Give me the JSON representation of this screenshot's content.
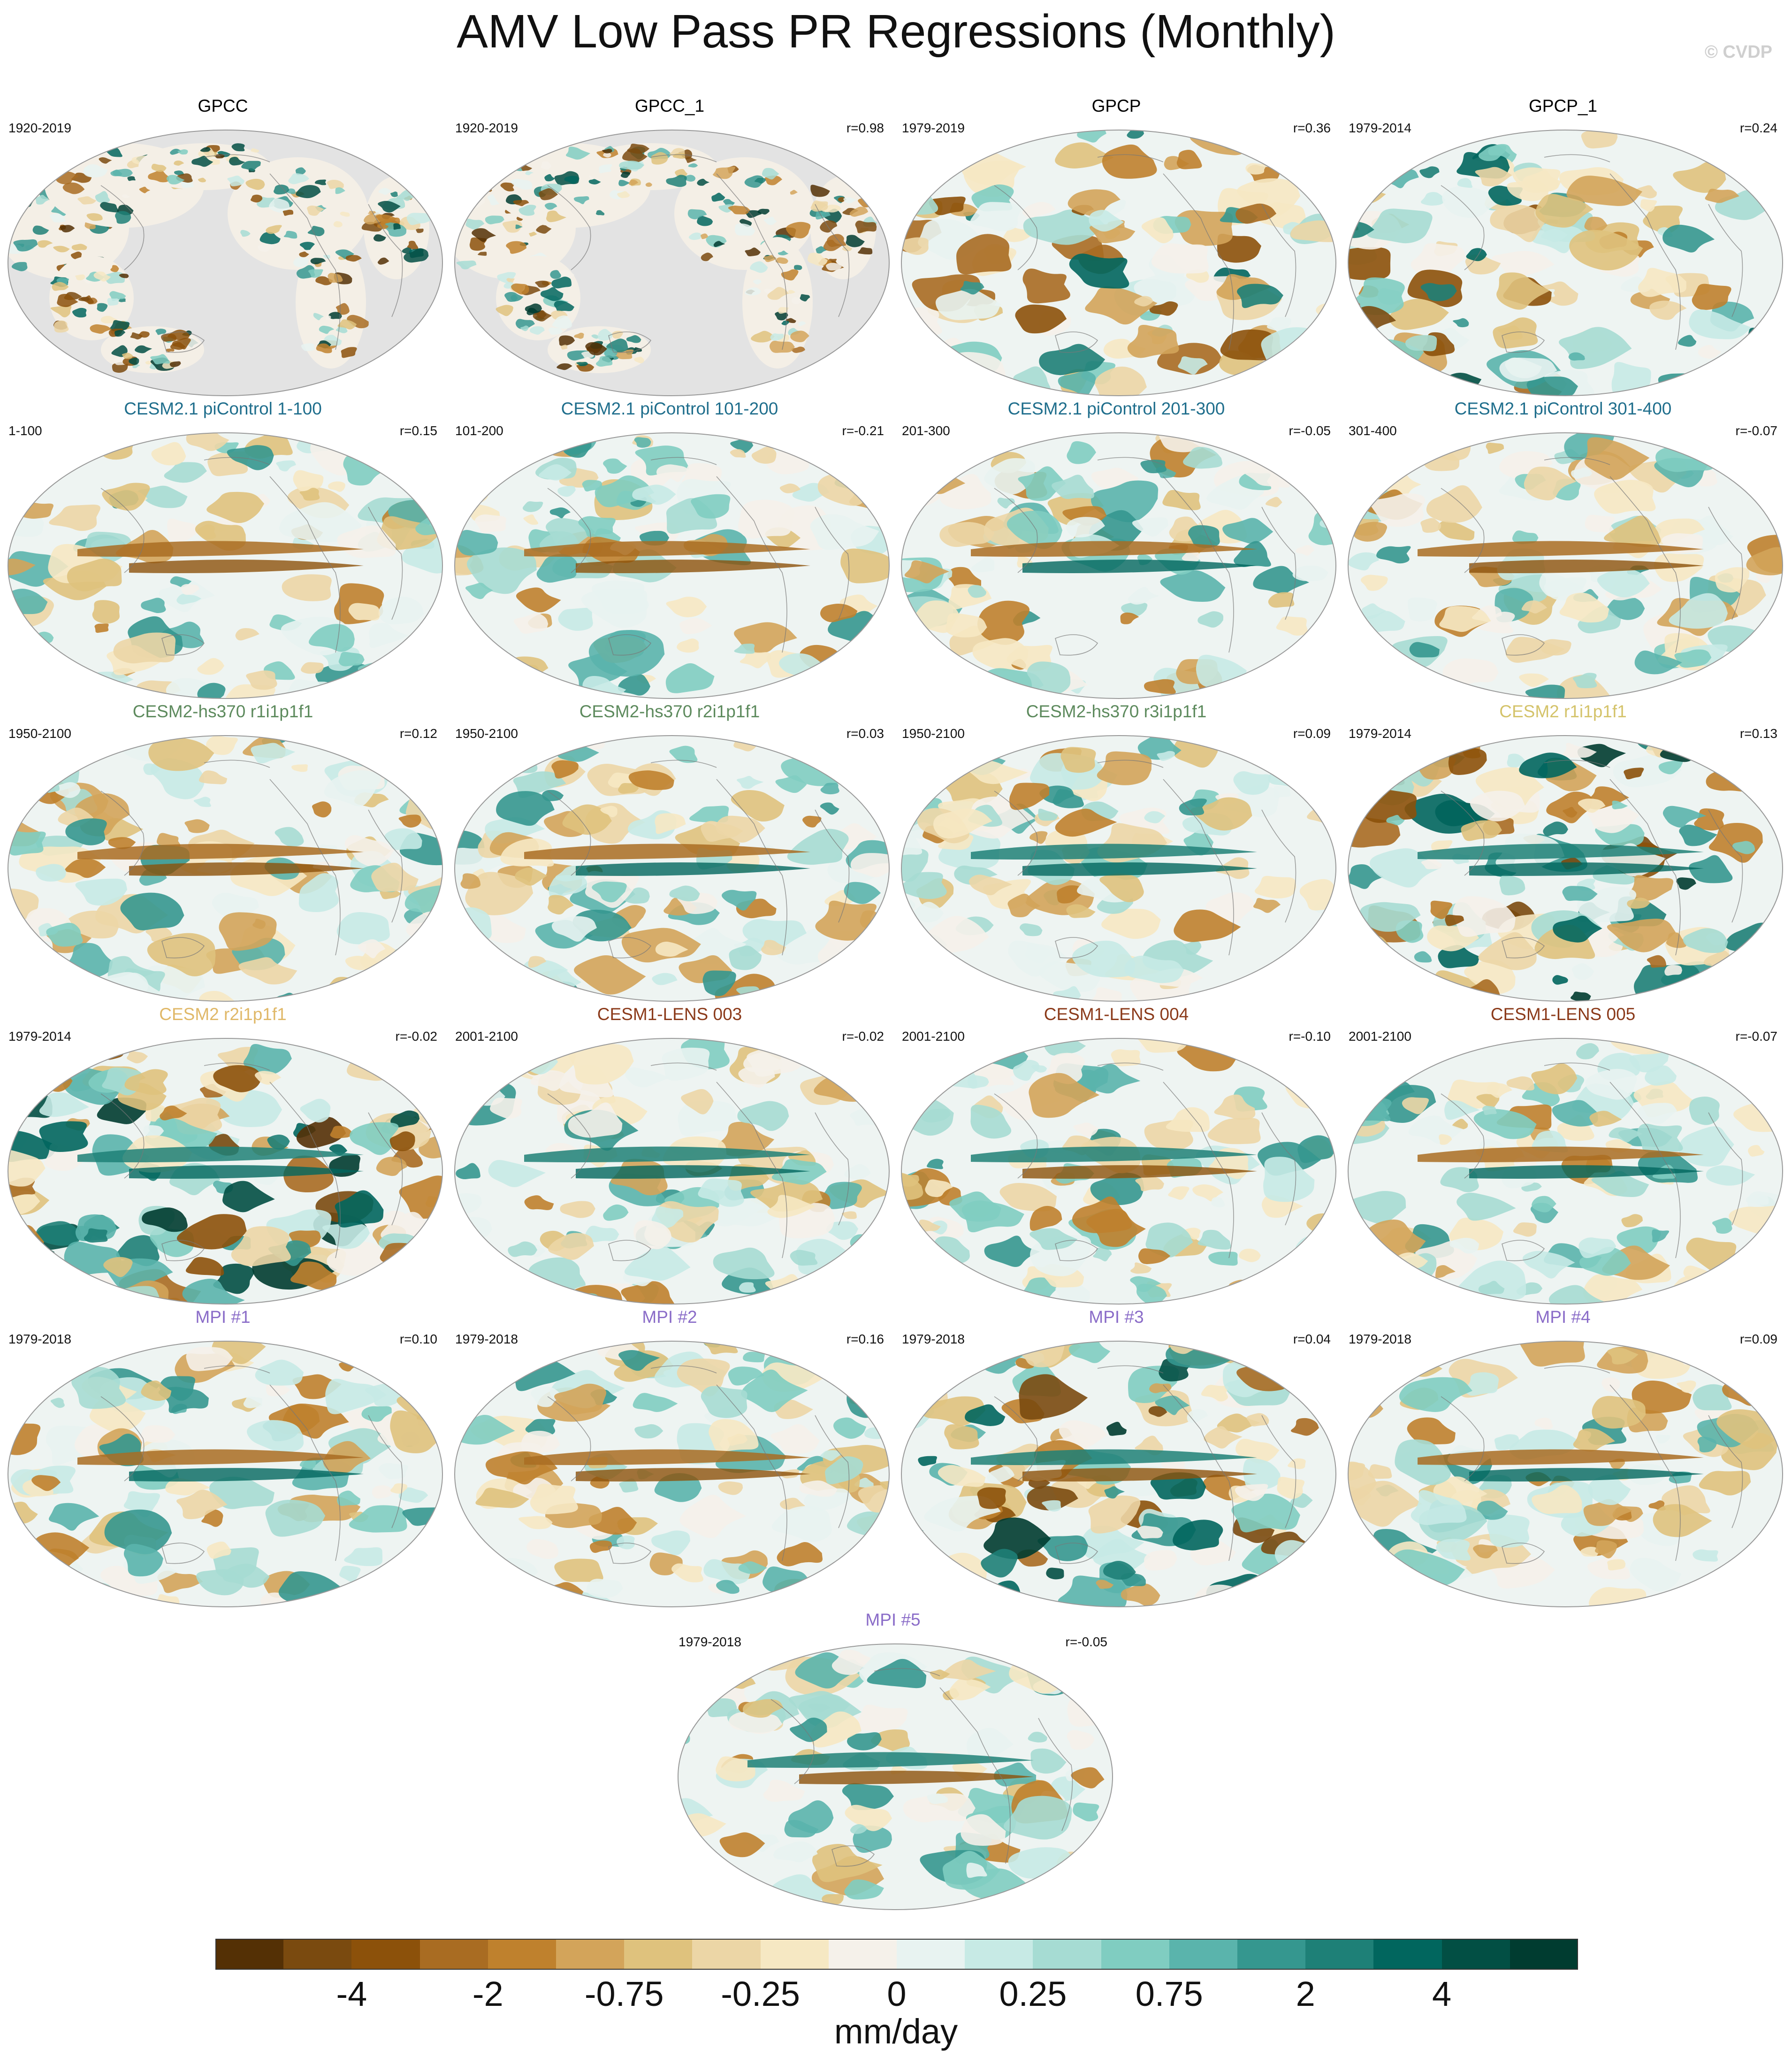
{
  "title": "AMV Low Pass PR Regressions (Monthly)",
  "watermark": "© CVDP",
  "panels": [
    {
      "title": "GPCC",
      "title_color": "#000000",
      "years": "1920-2019",
      "r": "",
      "style": "land"
    },
    {
      "title": "GPCC_1",
      "title_color": "#000000",
      "years": "1920-2019",
      "r": "r=0.98",
      "style": "land"
    },
    {
      "title": "GPCP",
      "title_color": "#000000",
      "years": "1979-2019",
      "r": "r=0.36",
      "style": "obs"
    },
    {
      "title": "GPCP_1",
      "title_color": "#000000",
      "years": "1979-2014",
      "r": "r=0.24",
      "style": "obs"
    },
    {
      "title": "CESM2.1 piControl 1-100",
      "title_color": "#1f6e8c",
      "years": "1-100",
      "r": "r=0.15",
      "style": "model"
    },
    {
      "title": "CESM2.1 piControl 101-200",
      "title_color": "#1f6e8c",
      "years": "101-200",
      "r": "r=-0.21",
      "style": "model"
    },
    {
      "title": "CESM2.1 piControl 201-300",
      "title_color": "#1f6e8c",
      "years": "201-300",
      "r": "r=-0.05",
      "style": "model"
    },
    {
      "title": "CESM2.1 piControl 301-400",
      "title_color": "#1f6e8c",
      "years": "301-400",
      "r": "r=-0.07",
      "style": "model"
    },
    {
      "title": "CESM2-hs370 r1i1p1f1",
      "title_color": "#5d8a5d",
      "years": "1950-2100",
      "r": "r=0.12",
      "style": "model"
    },
    {
      "title": "CESM2-hs370 r2i1p1f1",
      "title_color": "#5d8a5d",
      "years": "1950-2100",
      "r": "r=0.03",
      "style": "model"
    },
    {
      "title": "CESM2-hs370 r3i1p1f1",
      "title_color": "#5d8a5d",
      "years": "1950-2100",
      "r": "r=0.09",
      "style": "model"
    },
    {
      "title": "CESM2 r1i1p1f1",
      "title_color": "#d4c36a",
      "years": "1979-2014",
      "r": "r=0.13",
      "style": "strong"
    },
    {
      "title": "CESM2 r2i1p1f1",
      "title_color": "#e0b868",
      "years": "1979-2014",
      "r": "r=-0.02",
      "style": "strong"
    },
    {
      "title": "CESM1-LENS 003",
      "title_color": "#8b3a1a",
      "years": "2001-2100",
      "r": "r=-0.02",
      "style": "model"
    },
    {
      "title": "CESM1-LENS 004",
      "title_color": "#8b3a1a",
      "years": "2001-2100",
      "r": "r=-0.10",
      "style": "model"
    },
    {
      "title": "CESM1-LENS 005",
      "title_color": "#8b3a1a",
      "years": "2001-2100",
      "r": "r=-0.07",
      "style": "model"
    },
    {
      "title": "MPI #1",
      "title_color": "#8a6cc8",
      "years": "1979-2018",
      "r": "r=0.10",
      "style": "model"
    },
    {
      "title": "MPI #2",
      "title_color": "#8a6cc8",
      "years": "1979-2018",
      "r": "r=0.16",
      "style": "model"
    },
    {
      "title": "MPI #3",
      "title_color": "#8a6cc8",
      "years": "1979-2018",
      "r": "r=0.04",
      "style": "strong"
    },
    {
      "title": "MPI #4",
      "title_color": "#8a6cc8",
      "years": "1979-2018",
      "r": "r=0.09",
      "style": "model"
    },
    {
      "title": "MPI #5",
      "title_color": "#8a6cc8",
      "years": "1979-2018",
      "r": "r=-0.05",
      "style": "model"
    }
  ],
  "colorbar": {
    "colors": [
      "#543005",
      "#7a4a0f",
      "#8c510a",
      "#a96c22",
      "#bf812d",
      "#d3a45a",
      "#dfc27d",
      "#ecd6a6",
      "#f6e8c3",
      "#f5f1ea",
      "#e8f3f1",
      "#c7eae5",
      "#a6dcd3",
      "#80cdc1",
      "#5ab4ac",
      "#35978f",
      "#1e8077",
      "#01665e",
      "#024f44",
      "#003c30"
    ],
    "labels": [
      "-4",
      "-2",
      "-0.75",
      "-0.25",
      "0",
      "0.25",
      "0.75",
      "2",
      "4"
    ],
    "units": "mm/day"
  }
}
